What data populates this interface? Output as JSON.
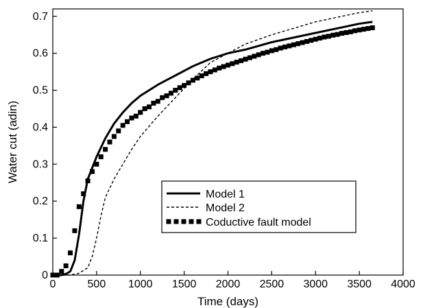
{
  "chart_data": {
    "type": "line",
    "title": "",
    "xlabel": "Time (days)",
    "ylabel": "Water cut (adin)",
    "xlim": [
      0,
      4000
    ],
    "ylim": [
      0,
      0.72
    ],
    "x_ticks": [
      0,
      500,
      1000,
      1500,
      2000,
      2500,
      3000,
      3500,
      4000
    ],
    "y_ticks": [
      0,
      0.1,
      0.2,
      0.3,
      0.4,
      0.5,
      0.6,
      0.7
    ],
    "x_tick_labels": [
      "0",
      "500",
      "1000",
      "1500",
      "2000",
      "2500",
      "3000",
      "3500",
      "4000"
    ],
    "y_tick_labels": [
      "0",
      "0.1",
      "0.2",
      "0.3",
      "0.4",
      "0.5",
      "0.6",
      "0.7"
    ],
    "grid": false,
    "legend_position": "center-right",
    "series": [
      {
        "name": "Model 1",
        "style": "solid",
        "color": "#000000",
        "x": [
          0,
          100,
          150,
          200,
          250,
          300,
          350,
          400,
          450,
          500,
          600,
          700,
          800,
          900,
          1000,
          1200,
          1400,
          1600,
          1800,
          2000,
          2200,
          2500,
          3000,
          3500,
          3650
        ],
        "y": [
          0,
          0,
          0.003,
          0.01,
          0.04,
          0.11,
          0.2,
          0.26,
          0.29,
          0.32,
          0.37,
          0.41,
          0.44,
          0.465,
          0.485,
          0.515,
          0.54,
          0.565,
          0.585,
          0.6,
          0.61,
          0.63,
          0.655,
          0.68,
          0.685
        ]
      },
      {
        "name": "Model 2",
        "style": "dashed",
        "color": "#000000",
        "x": [
          0,
          200,
          300,
          400,
          450,
          500,
          550,
          600,
          700,
          800,
          900,
          1000,
          1200,
          1400,
          1600,
          1800,
          2000,
          2200,
          2500,
          3000,
          3500,
          3650
        ],
        "y": [
          0,
          0,
          0.005,
          0.02,
          0.05,
          0.1,
          0.16,
          0.21,
          0.26,
          0.3,
          0.34,
          0.375,
          0.43,
          0.48,
          0.53,
          0.575,
          0.6,
          0.625,
          0.65,
          0.685,
          0.71,
          0.715
        ]
      },
      {
        "name": "Coductive fault model",
        "style": "markers",
        "color": "#000000",
        "x": [
          0,
          50,
          100,
          150,
          200,
          250,
          300,
          350,
          400,
          450,
          500,
          550,
          600,
          650,
          700,
          750,
          800,
          850,
          900,
          950,
          1000,
          1050,
          1100,
          1150,
          1200,
          1250,
          1300,
          1350,
          1400,
          1450,
          1500,
          1550,
          1600,
          1650,
          1700,
          1750,
          1800,
          1850,
          1900,
          1950,
          2000,
          2050,
          2100,
          2150,
          2200,
          2250,
          2300,
          2350,
          2400,
          2450,
          2500,
          2550,
          2600,
          2650,
          2700,
          2750,
          2800,
          2850,
          2900,
          2950,
          3000,
          3050,
          3100,
          3150,
          3200,
          3250,
          3300,
          3350,
          3400,
          3450,
          3500,
          3550,
          3600,
          3650
        ],
        "y": [
          0,
          0,
          0.01,
          0.025,
          0.06,
          0.12,
          0.185,
          0.22,
          0.255,
          0.28,
          0.3,
          0.32,
          0.34,
          0.36,
          0.375,
          0.39,
          0.405,
          0.415,
          0.425,
          0.43,
          0.44,
          0.45,
          0.455,
          0.465,
          0.47,
          0.48,
          0.485,
          0.492,
          0.5,
          0.507,
          0.513,
          0.52,
          0.527,
          0.533,
          0.539,
          0.545,
          0.55,
          0.555,
          0.56,
          0.564,
          0.568,
          0.572,
          0.576,
          0.58,
          0.584,
          0.588,
          0.592,
          0.596,
          0.6,
          0.603,
          0.607,
          0.61,
          0.614,
          0.617,
          0.62,
          0.623,
          0.626,
          0.629,
          0.632,
          0.635,
          0.638,
          0.641,
          0.644,
          0.646,
          0.649,
          0.651,
          0.654,
          0.656,
          0.658,
          0.661,
          0.663,
          0.665,
          0.667,
          0.669
        ]
      }
    ]
  }
}
